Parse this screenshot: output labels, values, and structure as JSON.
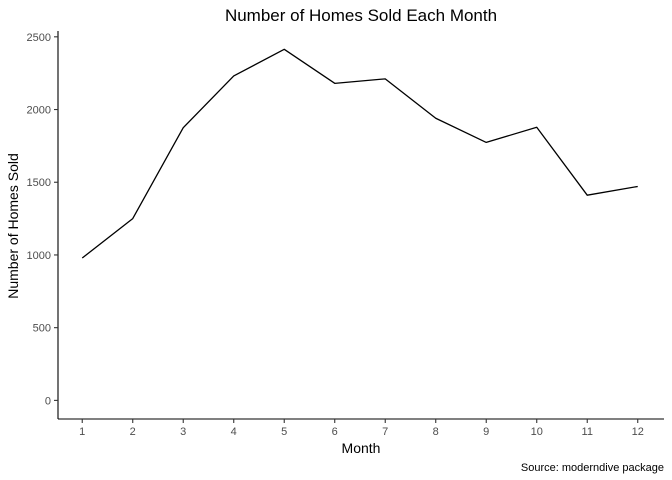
{
  "chart_data": {
    "type": "line",
    "title": "Number of Homes Sold Each Month",
    "xlabel": "Month",
    "ylabel": "Number of Homes Sold",
    "caption": "Source: moderndive package",
    "x": [
      1,
      2,
      3,
      4,
      5,
      6,
      7,
      8,
      9,
      10,
      11,
      12
    ],
    "x_tick_labels": [
      "1",
      "2",
      "3",
      "4",
      "5",
      "6",
      "7",
      "8",
      "9",
      "10",
      "11",
      "12"
    ],
    "y_ticks": [
      0,
      500,
      1000,
      1500,
      2000,
      2500
    ],
    "y_tick_labels": [
      "0",
      "500",
      "1000",
      "1500",
      "2000",
      "2500"
    ],
    "series": [
      {
        "values": [
          979,
          1250,
          1875,
          2231,
          2414,
          2180,
          2211,
          1940,
          1774,
          1878,
          1411,
          1471
        ],
        "color": "#000000"
      }
    ],
    "xlim": [
      0.52,
      12.52
    ],
    "ylim": [
      -128,
      2540
    ],
    "grid": false,
    "legend": "none"
  }
}
